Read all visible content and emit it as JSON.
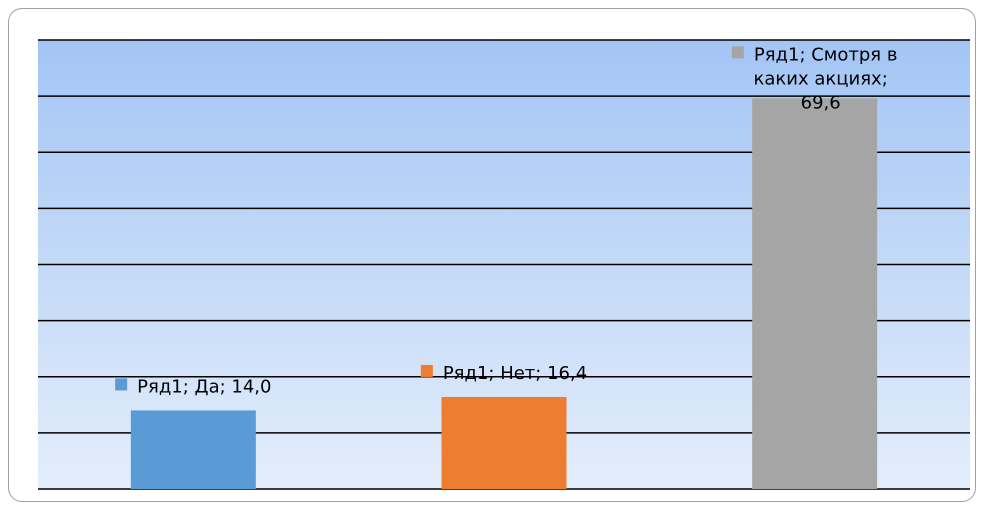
{
  "chart_data": {
    "type": "bar",
    "categories": [
      "Да",
      "Нет",
      "Смотря в каких акциях"
    ],
    "series": [
      {
        "name": "Ряд1",
        "values": [
          14.0,
          16.4,
          69.6
        ]
      }
    ],
    "bar_colors": [
      "#5b9bd5",
      "#ed7d31",
      "#a5a5a5"
    ],
    "data_labels": [
      [
        "Ряд1; Да; 14,0"
      ],
      [
        "Ряд1; Нет; 16,4"
      ],
      [
        "Ряд1; Смотря в",
        "каких акциях;",
        "69,6"
      ]
    ],
    "ylim": [
      0,
      80
    ],
    "grid": true,
    "gridline_color": "#000000",
    "plot_background_gradient": [
      "#a3c5f5",
      "#e4eefb"
    ]
  }
}
